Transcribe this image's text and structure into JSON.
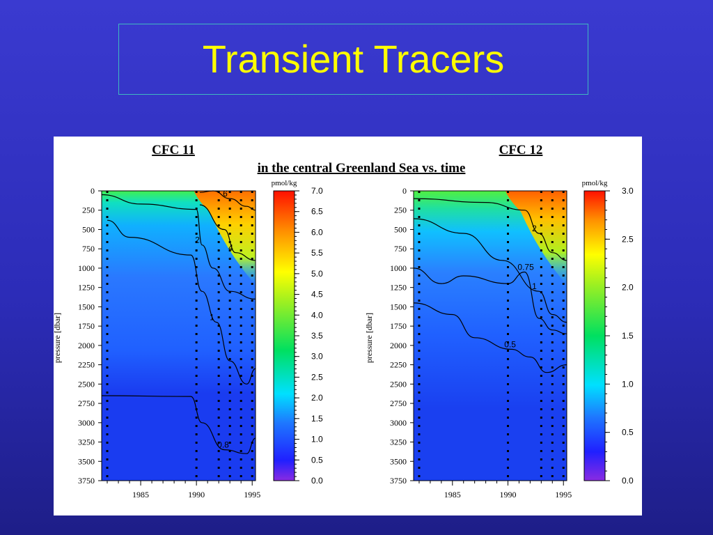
{
  "slide": {
    "title": "Transient Tracers"
  },
  "figure": {
    "subtitle": "in the central Greenland Sea vs. time",
    "ylabel": "pressure [dbar]",
    "unit": "pmol/kg"
  },
  "chart_data": [
    {
      "type": "heatmap",
      "title": "CFC 11",
      "ylabel": "pressure [dbar]",
      "xlim": [
        1981.5,
        1995.3
      ],
      "ylim": [
        0,
        3750
      ],
      "y_reversed": true,
      "x_ticks": [
        "1985",
        "1990",
        "1995"
      ],
      "y_ticks": [
        "0",
        "250",
        "500",
        "750",
        "1000",
        "1250",
        "1500",
        "1750",
        "2000",
        "2250",
        "2500",
        "2750",
        "3000",
        "3250",
        "3500",
        "3750"
      ],
      "colorbar": {
        "label": "pmol/kg",
        "range": [
          0,
          7
        ],
        "ticks": [
          "0.0",
          "0.5",
          "1.0",
          "1.5",
          "2.0",
          "2.5",
          "3.0",
          "3.5",
          "4.0",
          "4.5",
          "5.0",
          "5.5",
          "6.0",
          "6.5",
          "7.0"
        ]
      },
      "contours": [
        {
          "label": "6",
          "level": 6,
          "points": [
            [
              1990.3,
              20
            ],
            [
              1991.5,
              0
            ],
            [
              1993,
              100
            ],
            [
              1994.5,
              200
            ],
            [
              1995.3,
              250
            ]
          ]
        },
        {
          "label": "4",
          "level": 4,
          "points": [
            [
              1990.3,
              180
            ],
            [
              1992.5,
              500
            ],
            [
              1993.5,
              800
            ],
            [
              1995.3,
              900
            ]
          ]
        },
        {
          "label": "2",
          "level": 2,
          "points": [
            [
              1981.5,
              50
            ],
            [
              1985,
              170
            ],
            [
              1990,
              240
            ],
            [
              1990.5,
              700
            ],
            [
              1991.5,
              1000
            ],
            [
              1993,
              1300
            ],
            [
              1995.3,
              1400
            ]
          ]
        },
        {
          "label": "1",
          "level": 1,
          "points": [
            [
              1982,
              380
            ],
            [
              1984,
              600
            ],
            [
              1989.5,
              830
            ],
            [
              1990.5,
              1300
            ],
            [
              1991.8,
              1700
            ],
            [
              1993,
              2200
            ],
            [
              1994.5,
              2500
            ],
            [
              1995.3,
              2300
            ]
          ]
        },
        {
          "label": "0.8",
          "level": 0.8,
          "points": [
            [
              1981.5,
              2650
            ],
            [
              1989.5,
              2660
            ],
            [
              1990.5,
              3000
            ],
            [
              1992.5,
              3350
            ],
            [
              1994.5,
              3400
            ],
            [
              1995.3,
              3200
            ]
          ]
        }
      ],
      "station_years": [
        1982,
        1990,
        1992,
        1993,
        1994,
        1995
      ]
    },
    {
      "type": "heatmap",
      "title": "CFC 12",
      "ylabel": "pressure [dbar]",
      "xlim": [
        1981.5,
        1995.3
      ],
      "ylim": [
        0,
        3750
      ],
      "y_reversed": true,
      "x_ticks": [
        "1985",
        "1990",
        "1995"
      ],
      "y_ticks": [
        "0",
        "250",
        "500",
        "750",
        "1000",
        "1250",
        "1500",
        "1750",
        "2000",
        "2250",
        "2500",
        "2750",
        "3000",
        "3250",
        "3500",
        "3750"
      ],
      "colorbar": {
        "label": "pmol/kg",
        "range": [
          0,
          3
        ],
        "ticks": [
          "0.0",
          "0.5",
          "1.0",
          "1.5",
          "2.0",
          "2.5",
          "3.0"
        ]
      },
      "contours": [
        {
          "label": "2",
          "level": 2,
          "points": [
            [
              1981.5,
              100
            ],
            [
              1988,
              150
            ],
            [
              1991.5,
              250
            ],
            [
              1992.8,
              550
            ],
            [
              1994,
              800
            ],
            [
              1995.3,
              900
            ]
          ]
        },
        {
          "label": "1",
          "level": 1,
          "points": [
            [
              1981.5,
              360
            ],
            [
              1986,
              550
            ],
            [
              1989.5,
              900
            ],
            [
              1992.8,
              1300
            ],
            [
              1994,
              1600
            ],
            [
              1995.3,
              1700
            ]
          ]
        },
        {
          "label": "0.75",
          "level": 0.75,
          "points": [
            [
              1981.5,
              1000
            ],
            [
              1984,
              1200
            ],
            [
              1986,
              1100
            ],
            [
              1990,
              1200
            ],
            [
              1991.5,
              1050
            ],
            [
              1992.8,
              1650
            ],
            [
              1994,
              1800
            ],
            [
              1995.3,
              1850
            ]
          ]
        },
        {
          "label": "0.5",
          "level": 0.5,
          "points": [
            [
              1981.5,
              1450
            ],
            [
              1985,
              1600
            ],
            [
              1987,
              1900
            ],
            [
              1990.3,
              2050
            ],
            [
              1992,
              2150
            ],
            [
              1993.5,
              2350
            ],
            [
              1995.3,
              2250
            ]
          ]
        }
      ],
      "station_years": [
        1982,
        1990,
        1993,
        1994,
        1995
      ]
    }
  ]
}
